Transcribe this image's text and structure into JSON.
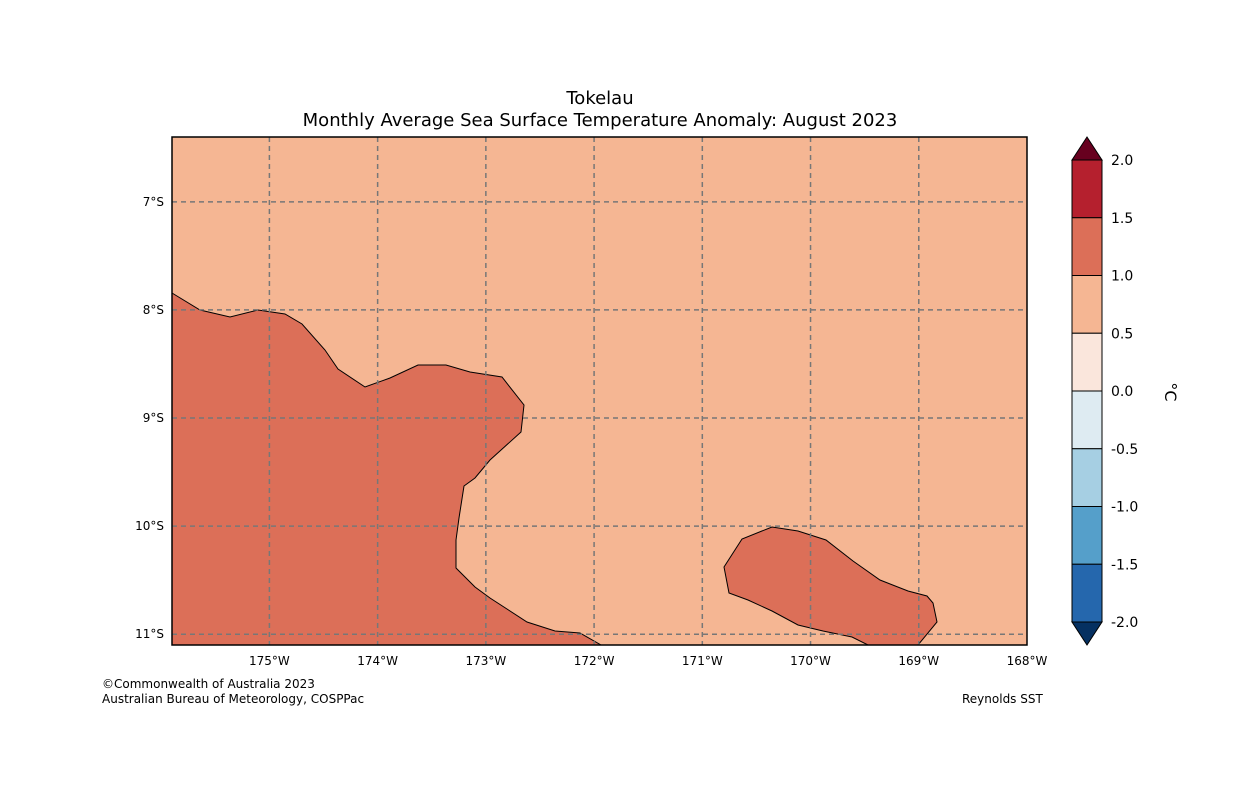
{
  "title": "Tokelau",
  "subtitle": "Monthly Average Sea Surface Temperature Anomaly: August 2023",
  "chart_data": {
    "type": "map",
    "variable": "Sea Surface Temperature Anomaly",
    "units": "°C",
    "lon_ticks": [
      "175°W",
      "174°W",
      "173°W",
      "172°W",
      "171°W",
      "170°W",
      "169°W",
      "168°W"
    ],
    "lat_ticks": [
      "7°S",
      "8°S",
      "9°S",
      "10°S",
      "11°S"
    ],
    "lon_range": [
      -175.9,
      -168.0
    ],
    "lat_range": [
      -11.1,
      -6.4
    ],
    "grid": true,
    "background_anomaly_class": "0.5 to 1.0",
    "region_anomaly_class": "1.0 to 1.5",
    "colorbar": {
      "label": "°C",
      "ticks": [
        "2.0",
        "1.5",
        "1.0",
        "0.5",
        "0.0",
        "-0.5",
        "-1.0",
        "-1.5",
        "-2.0"
      ],
      "colors": [
        "#b5202e",
        "#dc6f58",
        "#f5b693",
        "#fae6dc",
        "#deebf2",
        "#a6cfe3",
        "#559fca",
        "#2567ad"
      ],
      "over_color": "#67001f",
      "under_color": "#053061"
    }
  },
  "footer": {
    "copyright": "©Commonwealth of Australia 2023",
    "source": "Australian Bureau of Meteorology, COSPPac",
    "dataset": "Reynolds SST"
  }
}
